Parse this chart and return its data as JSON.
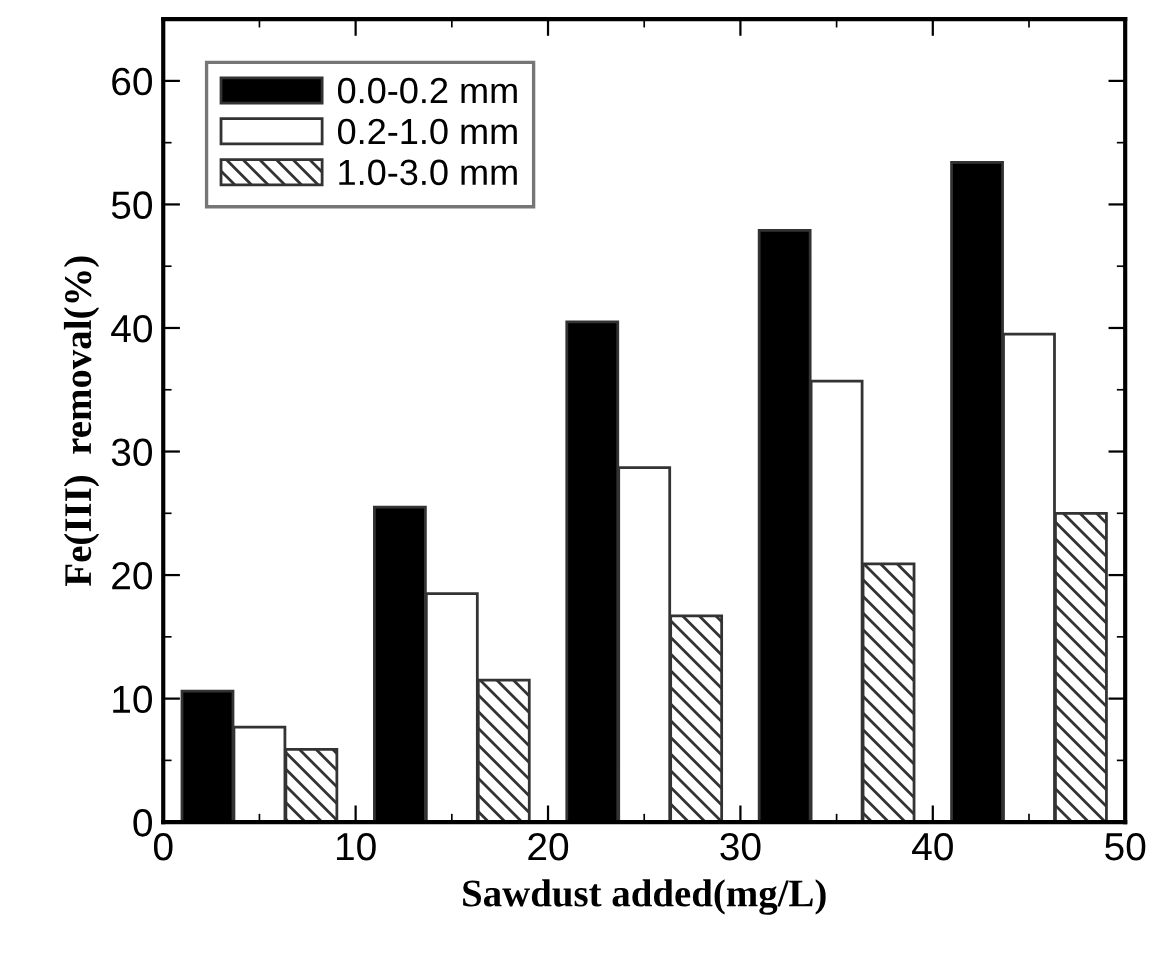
{
  "chart_data": {
    "type": "bar",
    "xlabel": "Sawdust added(mg/L)",
    "ylabel": "Fe(III)  removal(%)",
    "xlim": [
      0,
      50
    ],
    "xticks": [
      0,
      10,
      20,
      30,
      40,
      50
    ],
    "ylim": [
      0,
      65
    ],
    "yticks": [
      0,
      10,
      20,
      30,
      40,
      50,
      60
    ],
    "legend": "top left",
    "grid": false,
    "series": [
      {
        "name": "0.0-0.2 mm",
        "color": "#000000",
        "x": [
          2.3,
          12.3,
          22.3,
          32.3,
          42.3
        ],
        "values": [
          10.6,
          25.5,
          40.5,
          47.9,
          53.4
        ]
      },
      {
        "name": "0.2-1.0 mm",
        "color": "#ffffff",
        "x": [
          5,
          15,
          25,
          35,
          45
        ],
        "values": [
          7.7,
          18.5,
          28.7,
          35.7,
          39.5
        ]
      },
      {
        "name": "1.0-3.0 mm",
        "color": "#333333",
        "x": [
          7.7,
          17.7,
          27.7,
          37.7,
          47.7
        ],
        "values": [
          5.9,
          11.5,
          16.7,
          20.9,
          25.0
        ]
      }
    ]
  }
}
